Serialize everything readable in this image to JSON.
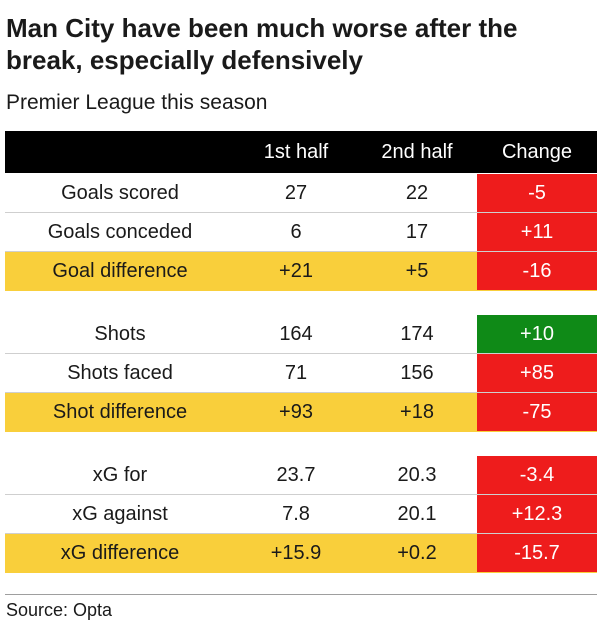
{
  "title": "Man City have been much worse after the break, especially defensively",
  "subtitle": "Premier League this season",
  "source": "Source: Opta",
  "colors": {
    "negative": "#ee1c1c",
    "positive": "#0f8a17",
    "highlight": "#f9cf3b",
    "header": "#000000"
  },
  "chart_data": {
    "type": "table",
    "columns": [
      "",
      "1st half",
      "2nd half",
      "Change"
    ],
    "groups": [
      {
        "rows": [
          {
            "label": "Goals scored",
            "first": "27",
            "second": "22",
            "change": "-5",
            "status": "negative",
            "highlight": false
          },
          {
            "label": "Goals conceded",
            "first": "6",
            "second": "17",
            "change": "+11",
            "status": "negative",
            "highlight": false
          },
          {
            "label": "Goal difference",
            "first": "+21",
            "second": "+5",
            "change": "-16",
            "status": "negative",
            "highlight": true
          }
        ]
      },
      {
        "rows": [
          {
            "label": "Shots",
            "first": "164",
            "second": "174",
            "change": "+10",
            "status": "positive",
            "highlight": false
          },
          {
            "label": "Shots faced",
            "first": "71",
            "second": "156",
            "change": "+85",
            "status": "negative",
            "highlight": false
          },
          {
            "label": "Shot difference",
            "first": "+93",
            "second": "+18",
            "change": "-75",
            "status": "negative",
            "highlight": true
          }
        ]
      },
      {
        "rows": [
          {
            "label": "xG for",
            "first": "23.7",
            "second": "20.3",
            "change": "-3.4",
            "status": "negative",
            "highlight": false
          },
          {
            "label": "xG against",
            "first": "7.8",
            "second": "20.1",
            "change": "+12.3",
            "status": "negative",
            "highlight": false
          },
          {
            "label": "xG difference",
            "first": "+15.9",
            "second": "+0.2",
            "change": "-15.7",
            "status": "negative",
            "highlight": true
          }
        ]
      }
    ]
  }
}
